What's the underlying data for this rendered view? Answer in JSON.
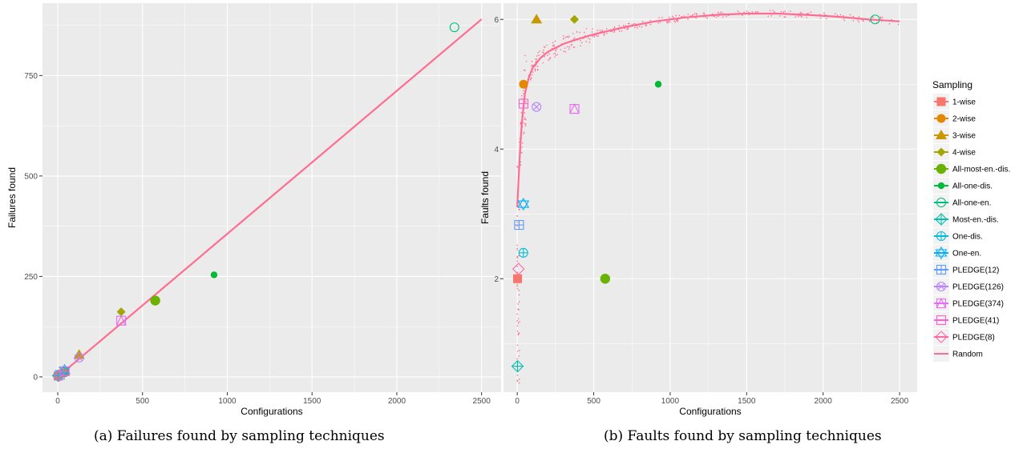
{
  "colors": {
    "1-wise": "#F8766D",
    "2-wise": "#E58700",
    "3-wise": "#C99800",
    "4-wise": "#A3A500",
    "All-most-en.-dis.": "#6BB100",
    "All-one-dis.": "#00BA38",
    "All-one-en.": "#00BF7D",
    "Most-en.-dis.": "#00C0AF",
    "One-dis.": "#00BCD8",
    "One-en.": "#00B0F6",
    "PLEDGE(12)": "#619CFF",
    "PLEDGE(126)": "#B983FF",
    "PLEDGE(374)": "#E76BF3",
    "PLEDGE(41)": "#FD61D1",
    "PLEDGE(8)": "#FF67A4",
    "Random": "#FF6C91",
    "panel_bg": "#EBEBEB",
    "grid": "#FFFFFF"
  },
  "chart_data": [
    {
      "type": "scatter",
      "caption": "(a) Failures found by sampling techniques",
      "xlabel": "Configurations",
      "ylabel": "Failures found",
      "xlim": [
        -90,
        2615
      ],
      "ylim": [
        -38,
        930
      ],
      "xticks": [
        "0",
        "500",
        "1000",
        "1500",
        "2000",
        "2500"
      ],
      "xtick_values": [
        0,
        500,
        1000,
        1500,
        2000,
        2500
      ],
      "yticks": [
        "0",
        "250",
        "500",
        "750"
      ],
      "ytick_values": [
        0,
        250,
        500,
        750
      ],
      "points": [
        {
          "series": "1-wise",
          "x": 2,
          "y": 2
        },
        {
          "series": "2-wise",
          "x": 41,
          "y": 10
        },
        {
          "series": "3-wise",
          "x": 126,
          "y": 55
        },
        {
          "series": "4-wise",
          "x": 374,
          "y": 162
        },
        {
          "series": "All-most-en.-dis.",
          "x": 575,
          "y": 190
        },
        {
          "series": "All-one-dis.",
          "x": 922,
          "y": 254
        },
        {
          "series": "All-one-en.",
          "x": 2340,
          "y": 870
        },
        {
          "series": "Most-en.-dis.",
          "x": 2,
          "y": 3
        },
        {
          "series": "One-dis.",
          "x": 40,
          "y": 12
        },
        {
          "series": "One-en.",
          "x": 40,
          "y": 16
        },
        {
          "series": "PLEDGE(12)",
          "x": 12,
          "y": 5
        },
        {
          "series": "PLEDGE(126)",
          "x": 126,
          "y": 48
        },
        {
          "series": "PLEDGE(374)",
          "x": 374,
          "y": 140
        },
        {
          "series": "PLEDGE(41)",
          "x": 41,
          "y": 14
        },
        {
          "series": "PLEDGE(8)",
          "x": 8,
          "y": 3
        }
      ],
      "random_line": {
        "x": [
          0,
          2500
        ],
        "y": [
          0,
          890
        ]
      }
    },
    {
      "type": "scatter",
      "caption": "(b) Faults found by sampling techniques",
      "xlabel": "Configurations",
      "ylabel": "Faults found",
      "xlim": [
        -90,
        2615
      ],
      "ylim": [
        0.25,
        6.25
      ],
      "xticks": [
        "0",
        "500",
        "1000",
        "1500",
        "2000",
        "2500"
      ],
      "xtick_values": [
        0,
        500,
        1000,
        1500,
        2000,
        2500
      ],
      "yticks": [
        "2",
        "4",
        "6"
      ],
      "ytick_values": [
        2,
        4,
        6
      ],
      "points": [
        {
          "series": "1-wise",
          "x": 2,
          "y": 2
        },
        {
          "series": "2-wise",
          "x": 41,
          "y": 5
        },
        {
          "series": "3-wise",
          "x": 126,
          "y": 6
        },
        {
          "series": "4-wise",
          "x": 374,
          "y": 6
        },
        {
          "series": "All-most-en.-dis.",
          "x": 575,
          "y": 2
        },
        {
          "series": "All-one-dis.",
          "x": 922,
          "y": 5
        },
        {
          "series": "All-one-en.",
          "x": 2340,
          "y": 6
        },
        {
          "series": "Most-en.-dis.",
          "x": 2,
          "y": 0.65
        },
        {
          "series": "One-dis.",
          "x": 40,
          "y": 2.4
        },
        {
          "series": "One-en.",
          "x": 40,
          "y": 3.15
        },
        {
          "series": "PLEDGE(12)",
          "x": 12,
          "y": 2.83
        },
        {
          "series": "PLEDGE(126)",
          "x": 126,
          "y": 4.65
        },
        {
          "series": "PLEDGE(374)",
          "x": 374,
          "y": 4.62
        },
        {
          "series": "PLEDGE(41)",
          "x": 41,
          "y": 4.7
        },
        {
          "series": "PLEDGE(8)",
          "x": 8,
          "y": 2.15
        }
      ],
      "random_curve": {
        "x": [
          0,
          5,
          10,
          20,
          30,
          50,
          75,
          100,
          150,
          200,
          300,
          400,
          500,
          700,
          900,
          1100,
          1300,
          1500,
          1700,
          1900,
          2100,
          2300,
          2500
        ],
        "y": [
          3.1,
          3.35,
          3.6,
          4.05,
          4.4,
          4.85,
          5.1,
          5.25,
          5.4,
          5.5,
          5.62,
          5.7,
          5.77,
          5.88,
          5.97,
          6.03,
          6.07,
          6.09,
          6.09,
          6.07,
          6.04,
          6.0,
          5.97
        ]
      },
      "legend": {
        "title": "Sampling",
        "position": "right",
        "entries": [
          "1-wise",
          "2-wise",
          "3-wise",
          "4-wise",
          "All-most-en.-dis.",
          "All-one-dis.",
          "All-one-en.",
          "Most-en.-dis.",
          "One-dis.",
          "One-en.",
          "PLEDGE(12)",
          "PLEDGE(126)",
          "PLEDGE(374)",
          "PLEDGE(41)",
          "PLEDGE(8)",
          "Random"
        ]
      }
    }
  ]
}
